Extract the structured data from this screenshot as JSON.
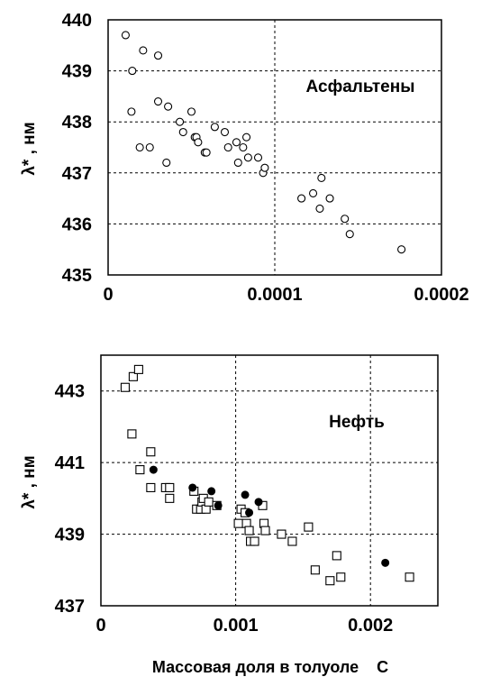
{
  "xlabel": "Массовая доля в толуоле    С",
  "chart_data": [
    {
      "type": "scatter",
      "annotation": "Асфальтены",
      "ylabel": "λ* ,  нм",
      "xlim": [
        0,
        0.0002
      ],
      "ylim": [
        435,
        440
      ],
      "x_ticks": [
        "0",
        "0.0001",
        "0.0002"
      ],
      "y_ticks": [
        "435",
        "436",
        "437",
        "438",
        "439",
        "440"
      ],
      "grid": true,
      "series": [
        {
          "marker": "open-circle",
          "points": [
            [
              1.05e-05,
              439.7
            ],
            [
              1.45e-05,
              439.0
            ],
            [
              1.4e-05,
              438.2
            ],
            [
              1.9e-05,
              437.5
            ],
            [
              2.1e-05,
              439.4
            ],
            [
              2.5e-05,
              437.5
            ],
            [
              3e-05,
              439.3
            ],
            [
              3e-05,
              438.4
            ],
            [
              3.5e-05,
              437.2
            ],
            [
              3.6e-05,
              438.3
            ],
            [
              4.3e-05,
              438.0
            ],
            [
              4.5e-05,
              437.8
            ],
            [
              5e-05,
              438.2
            ],
            [
              5.2e-05,
              437.7
            ],
            [
              5.3e-05,
              437.7
            ],
            [
              5.4e-05,
              437.6
            ],
            [
              5.8e-05,
              437.4
            ],
            [
              5.9e-05,
              437.4
            ],
            [
              6.4e-05,
              437.9
            ],
            [
              7e-05,
              437.8
            ],
            [
              7.2e-05,
              437.5
            ],
            [
              7.7e-05,
              437.6
            ],
            [
              7.8e-05,
              437.2
            ],
            [
              8.1e-05,
              437.5
            ],
            [
              8.3e-05,
              437.7
            ],
            [
              8.4e-05,
              437.3
            ],
            [
              9e-05,
              437.3
            ],
            [
              9.3e-05,
              437.0
            ],
            [
              9.4e-05,
              437.1
            ],
            [
              0.000116,
              436.5
            ],
            [
              0.000123,
              436.6
            ],
            [
              0.000127,
              436.3
            ],
            [
              0.000128,
              436.9
            ],
            [
              0.000133,
              436.5
            ],
            [
              0.000142,
              436.1
            ],
            [
              0.000145,
              435.8
            ],
            [
              0.000176,
              435.5
            ]
          ]
        }
      ]
    },
    {
      "type": "scatter",
      "annotation": "Нефть",
      "ylabel": "λ* ,  нм",
      "xlim": [
        0,
        0.0025
      ],
      "ylim": [
        437,
        444
      ],
      "x_ticks": [
        "0",
        "0.001",
        "0.002"
      ],
      "y_ticks": [
        "437",
        "439",
        "441",
        "443"
      ],
      "grid": true,
      "series": [
        {
          "marker": "open-square",
          "points": [
            [
              0.00018,
              443.1
            ],
            [
              0.00024,
              443.4
            ],
            [
              0.00028,
              443.6
            ],
            [
              0.00023,
              441.8
            ],
            [
              0.00029,
              440.8
            ],
            [
              0.00037,
              441.3
            ],
            [
              0.00037,
              440.3
            ],
            [
              0.00048,
              440.3
            ],
            [
              0.00051,
              440.3
            ],
            [
              0.00051,
              440.0
            ],
            [
              0.00069,
              440.2
            ],
            [
              0.00071,
              439.7
            ],
            [
              0.00074,
              439.7
            ],
            [
              0.00075,
              439.9
            ],
            [
              0.00076,
              440.0
            ],
            [
              0.00078,
              439.7
            ],
            [
              0.0008,
              439.9
            ],
            [
              0.00086,
              439.8
            ],
            [
              0.00102,
              439.3
            ],
            [
              0.00104,
              439.7
            ],
            [
              0.00107,
              439.6
            ],
            [
              0.00108,
              439.3
            ],
            [
              0.0011,
              439.1
            ],
            [
              0.00111,
              438.8
            ],
            [
              0.00114,
              438.8
            ],
            [
              0.0012,
              439.8
            ],
            [
              0.00121,
              439.3
            ],
            [
              0.00122,
              439.1
            ],
            [
              0.00134,
              439.0
            ],
            [
              0.00142,
              438.8
            ],
            [
              0.00154,
              439.2
            ],
            [
              0.00159,
              438.0
            ],
            [
              0.0017,
              437.7
            ],
            [
              0.00175,
              438.4
            ],
            [
              0.00178,
              437.8
            ],
            [
              0.00229,
              437.8
            ]
          ]
        },
        {
          "marker": "filled-circle",
          "points": [
            [
              0.00039,
              440.8
            ],
            [
              0.00068,
              440.3
            ],
            [
              0.00082,
              440.2
            ],
            [
              0.00087,
              439.8
            ],
            [
              0.00107,
              440.1
            ],
            [
              0.0011,
              439.6
            ],
            [
              0.00117,
              439.9
            ],
            [
              0.00211,
              438.2
            ]
          ]
        }
      ]
    }
  ]
}
